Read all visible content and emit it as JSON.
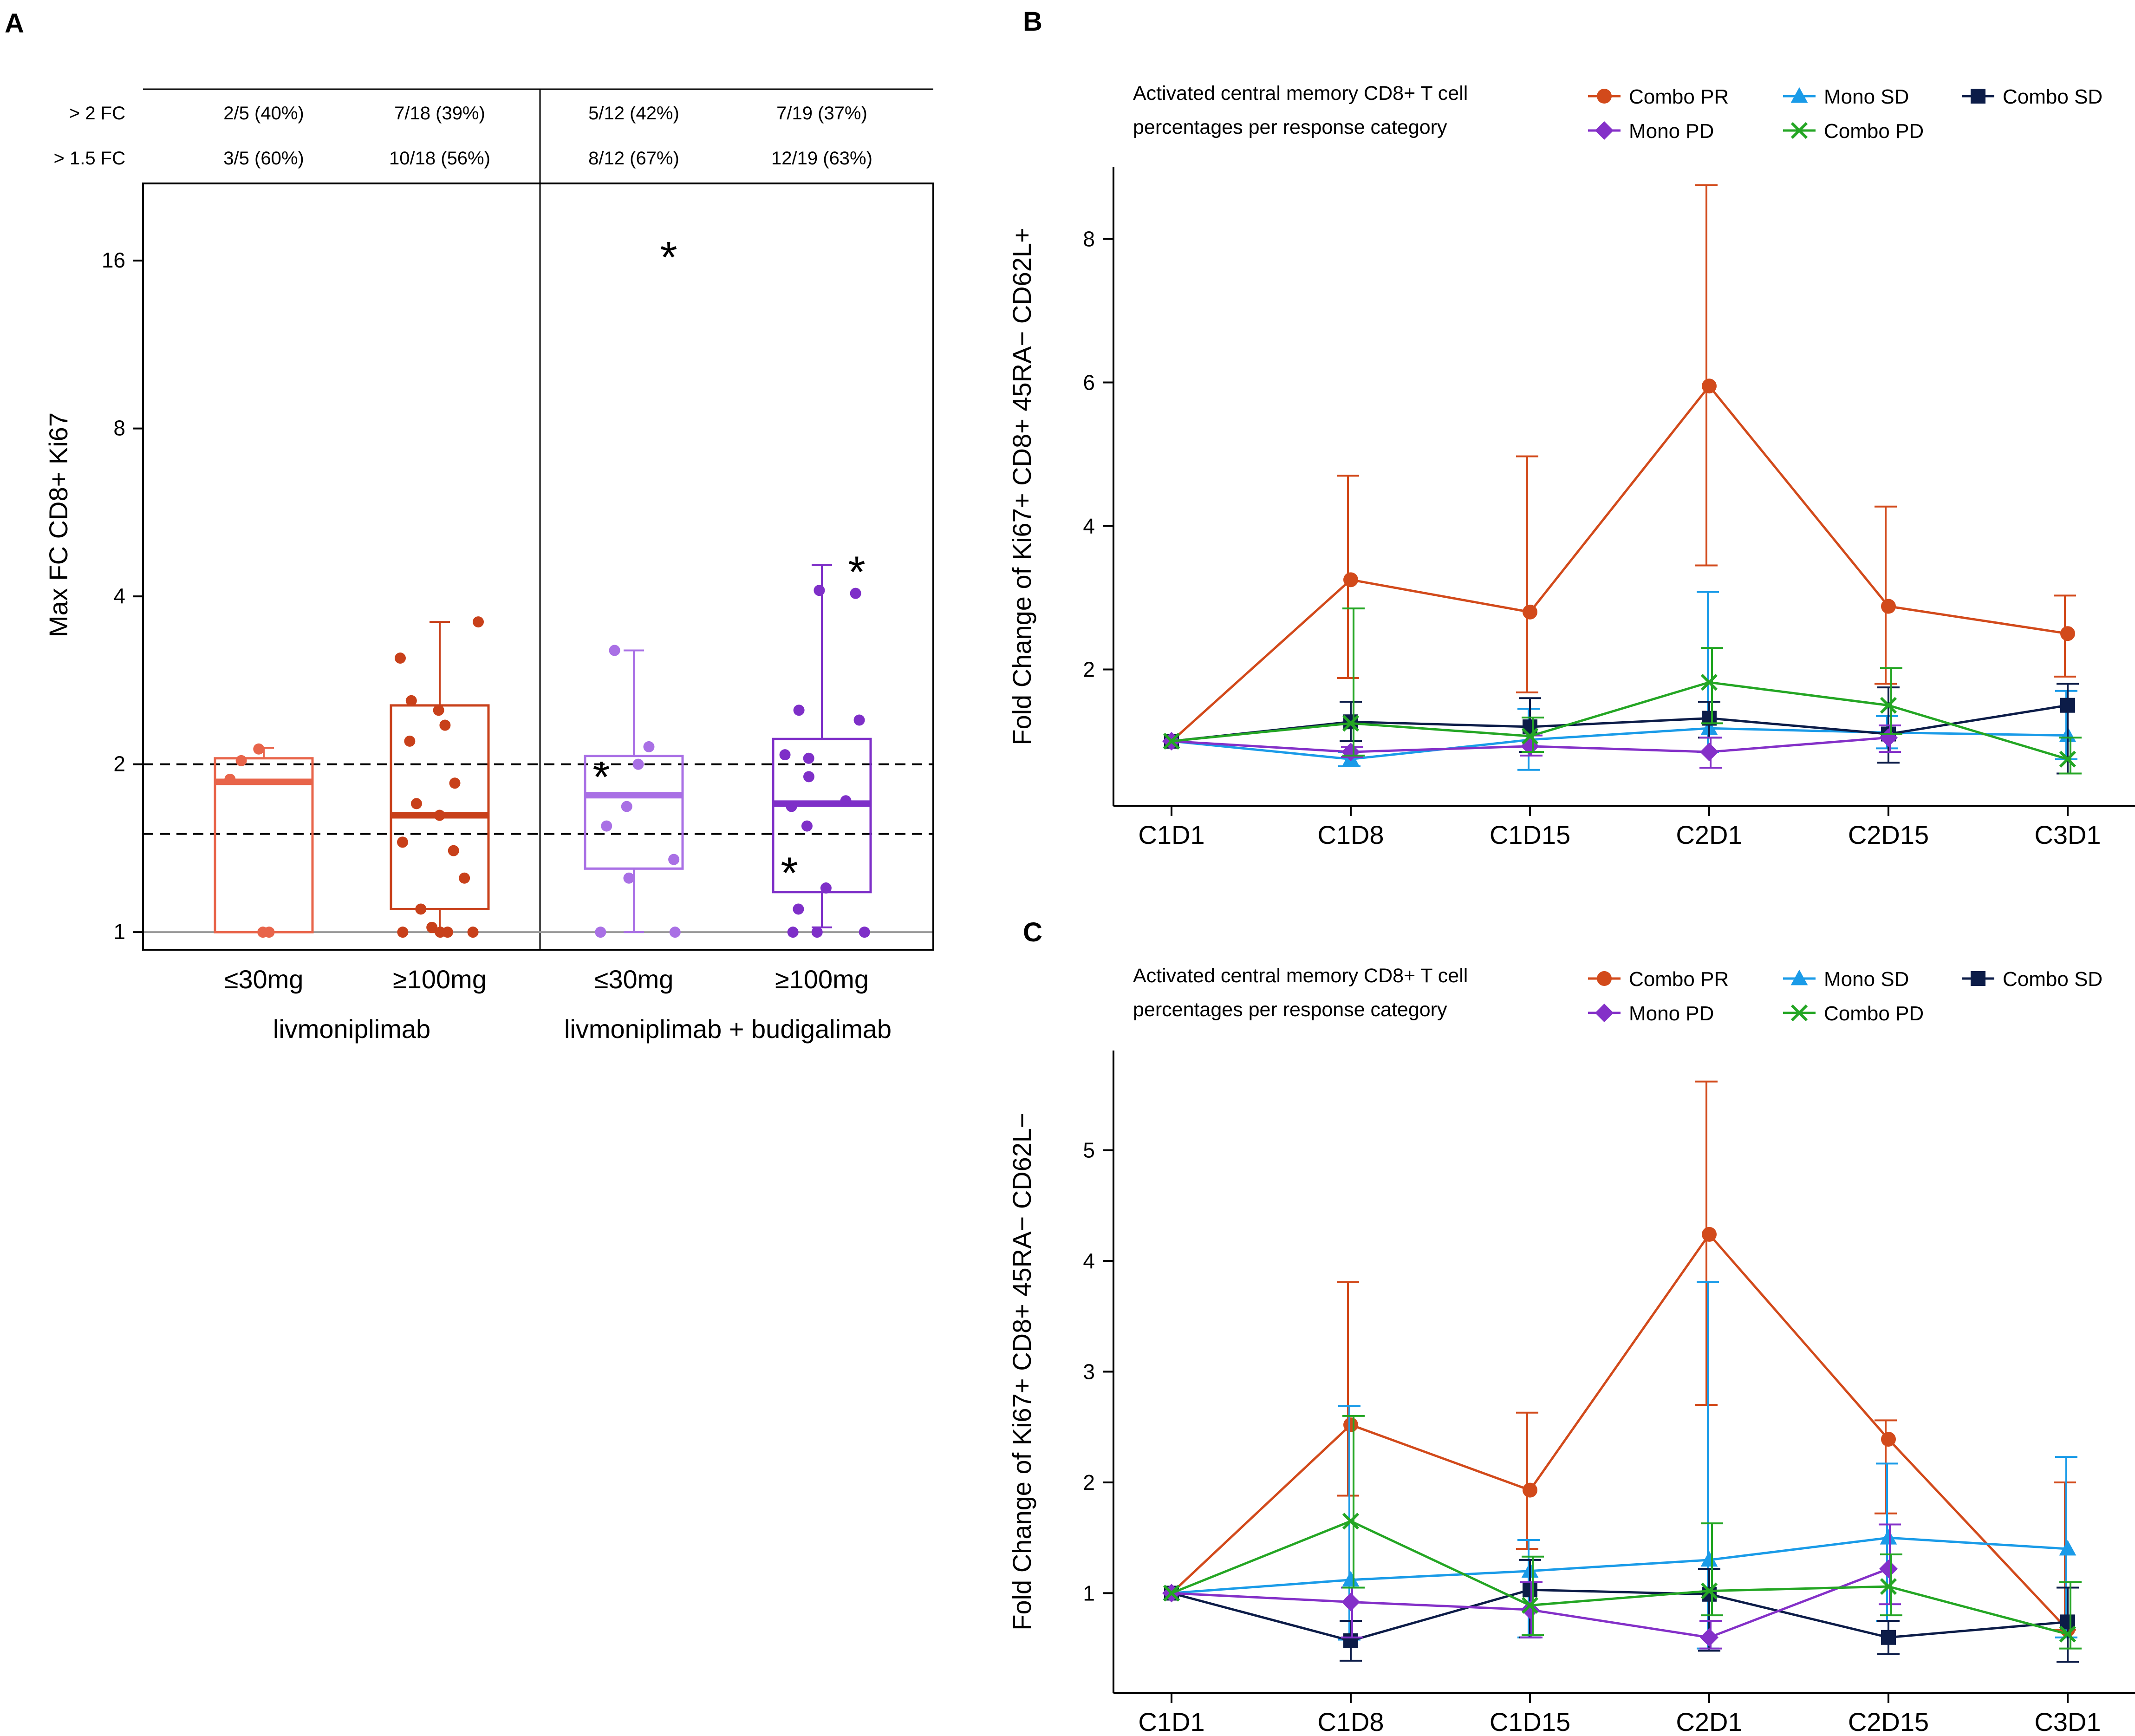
{
  "chart_data": [
    {
      "panel": "A",
      "type": "box",
      "ylabel": "Max FC CD8+ Ki67",
      "yscale": "log2",
      "yticks": [
        1,
        2,
        4,
        8,
        16
      ],
      "ylim": [
        0.93,
        22
      ],
      "reference_lines": [
        {
          "y": 2,
          "style": "dashed"
        },
        {
          "y": 1.5,
          "style": "dashed"
        },
        {
          "y": 1,
          "style": "solid-gray"
        }
      ],
      "header_rows": [
        {
          "label": "> 2 FC",
          "values": [
            "2/5 (40%)",
            "7/18 (39%)",
            "5/12 (42%)",
            "7/19 (37%)"
          ]
        },
        {
          "label": "> 1.5 FC",
          "values": [
            "3/5 (60%)",
            "10/18 (56%)",
            "8/12 (67%)",
            "12/19 (63%)"
          ]
        }
      ],
      "categories": [
        "≤30mg",
        "≥100mg",
        "≤30mg",
        "≥100mg"
      ],
      "groups": [
        {
          "label": "livmoniplimab",
          "categories": [
            0,
            1
          ]
        },
        {
          "label": "livmoniplimab + budigalimab",
          "categories": [
            2,
            3
          ]
        }
      ],
      "boxes": [
        {
          "category": "≤30mg",
          "color": "#E8644A",
          "q1": 1.0,
          "median": 1.86,
          "q3": 2.05,
          "whisker_low": 1.0,
          "whisker_high": 2.14,
          "points": [
            1.0,
            1.0,
            1.88,
            2.03,
            2.13
          ],
          "stars": []
        },
        {
          "category": "≥100mg",
          "color": "#C8401A",
          "q1": 1.1,
          "median": 1.62,
          "q3": 2.55,
          "whisker_low": 1.0,
          "whisker_high": 3.6,
          "points": [
            1.0,
            1.0,
            1.0,
            1.0,
            1.02,
            1.1,
            1.25,
            1.4,
            1.45,
            1.62,
            1.7,
            1.85,
            2.2,
            2.35,
            2.5,
            2.6,
            3.1,
            3.6
          ],
          "stars": []
        },
        {
          "category": "≤30mg",
          "color": "#A970E5",
          "q1": 1.3,
          "median": 1.76,
          "q3": 2.07,
          "whisker_low": 1.0,
          "whisker_high": 3.2,
          "points": [
            1.0,
            1.0,
            1.25,
            1.35,
            1.55,
            1.68,
            2.0,
            2.15,
            3.2
          ],
          "stars": [
            1.93,
            16.5
          ]
        },
        {
          "category": "≥100mg",
          "color": "#7E2FC8",
          "q1": 1.18,
          "median": 1.7,
          "q3": 2.22,
          "whisker_low": 1.02,
          "whisker_high": 4.55,
          "points": [
            1.0,
            1.0,
            1.0,
            1.1,
            1.2,
            1.55,
            1.68,
            1.72,
            1.9,
            2.05,
            2.08,
            2.4,
            2.5,
            4.05,
            4.1
          ],
          "stars": [
            1.3,
            4.5
          ]
        }
      ]
    },
    {
      "panel": "B",
      "type": "line",
      "subtitle": "Activated central memory CD8+ T cell percentages per response category",
      "subtitle_lines": [
        "Activated central memory CD8+ T cell",
        "percentages per response category"
      ],
      "ylabel": "Fold Change of Ki67+ CD8+ 45RA− CD62L+",
      "categories": [
        "C1D1",
        "C1D8",
        "C1D15",
        "C2D1",
        "C2D15",
        "C3D1"
      ],
      "ylim": [
        0.1,
        9.0
      ],
      "yticks": [
        2,
        4,
        6,
        8
      ],
      "series": [
        {
          "name": "Combo PR",
          "color": "#D24A1B",
          "marker": "circle",
          "values": [
            1.0,
            3.25,
            2.8,
            5.95,
            2.88,
            2.5
          ],
          "err_low": [
            1.0,
            1.88,
            1.68,
            3.45,
            1.8,
            1.9
          ],
          "err_high": [
            1.0,
            4.7,
            4.97,
            8.75,
            4.27,
            3.03
          ]
        },
        {
          "name": "Mono SD",
          "color": "#1A9BE8",
          "marker": "triangle",
          "values": [
            1.0,
            0.75,
            1.02,
            1.18,
            1.12,
            1.08
          ],
          "err_low": [
            1.0,
            0.65,
            0.6,
            0.85,
            0.9,
            0.75
          ],
          "err_high": [
            1.0,
            0.85,
            1.45,
            3.08,
            1.35,
            1.7
          ]
        },
        {
          "name": "Combo SD",
          "color": "#0C1C48",
          "marker": "square",
          "values": [
            1.0,
            1.27,
            1.2,
            1.32,
            1.1,
            1.5
          ],
          "err_low": [
            1.0,
            1.0,
            0.85,
            1.05,
            0.7,
            0.55
          ],
          "err_high": [
            1.0,
            1.55,
            1.6,
            1.55,
            1.75,
            1.8
          ]
        },
        {
          "name": "Mono PD",
          "color": "#8430C8",
          "marker": "diamond",
          "values": [
            1.0,
            0.85,
            0.93,
            0.85,
            1.05,
            null
          ],
          "err_low": [
            1.0,
            0.78,
            0.8,
            0.63,
            0.85,
            null
          ],
          "err_high": [
            1.0,
            0.92,
            1.08,
            1.05,
            1.22,
            null
          ]
        },
        {
          "name": "Combo PD",
          "color": "#24A624",
          "marker": "x",
          "values": [
            1.0,
            1.25,
            1.07,
            1.82,
            1.5,
            0.75
          ],
          "err_low": [
            1.0,
            0.8,
            0.85,
            1.25,
            1.1,
            0.55
          ],
          "err_high": [
            1.0,
            2.85,
            1.33,
            2.3,
            2.02,
            1.05
          ]
        }
      ],
      "legend": [
        [
          "Combo PR",
          "Mono SD",
          "Combo SD"
        ],
        [
          "Mono PD",
          "Combo PD"
        ]
      ]
    },
    {
      "panel": "C",
      "type": "line",
      "subtitle": "Activated central memory CD8+ T cell percentages per response category",
      "subtitle_lines": [
        "Activated central memory CD8+ T cell",
        "percentages per response category"
      ],
      "ylabel": "Fold Change of Ki67+ CD8+ 45RA− CD62L−",
      "categories": [
        "C1D1",
        "C1D8",
        "C1D15",
        "C2D1",
        "C2D15",
        "C3D1"
      ],
      "ylim": [
        0.1,
        5.9
      ],
      "yticks": [
        1,
        2,
        3,
        4,
        5
      ],
      "series": [
        {
          "name": "Combo PR",
          "color": "#D24A1B",
          "marker": "circle",
          "values": [
            1.0,
            2.52,
            1.93,
            4.24,
            2.39,
            0.67
          ],
          "err_low": [
            1.0,
            1.88,
            1.4,
            2.7,
            1.72,
            0.67
          ],
          "err_high": [
            1.0,
            3.81,
            2.63,
            5.62,
            2.56,
            2.0
          ]
        },
        {
          "name": "Mono SD",
          "color": "#1A9BE8",
          "marker": "triangle",
          "values": [
            1.0,
            1.12,
            1.2,
            1.3,
            1.5,
            1.4
          ],
          "err_low": [
            1.0,
            0.58,
            0.6,
            0.5,
            0.75,
            0.6
          ],
          "err_high": [
            1.0,
            2.69,
            1.48,
            3.81,
            2.17,
            2.23
          ]
        },
        {
          "name": "Combo SD",
          "color": "#0C1C48",
          "marker": "square",
          "values": [
            1.0,
            0.57,
            1.03,
            0.99,
            0.6,
            0.74
          ],
          "err_low": [
            1.0,
            0.39,
            0.6,
            0.48,
            0.45,
            0.38
          ],
          "err_high": [
            1.0,
            0.75,
            1.3,
            1.22,
            0.75,
            1.05
          ]
        },
        {
          "name": "Mono PD",
          "color": "#8430C8",
          "marker": "diamond",
          "values": [
            1.0,
            0.92,
            0.85,
            0.6,
            1.22,
            null
          ],
          "err_low": [
            1.0,
            0.6,
            0.6,
            0.5,
            0.9,
            null
          ],
          "err_high": [
            1.0,
            1.05,
            1.1,
            0.75,
            1.62,
            null
          ]
        },
        {
          "name": "Combo PD",
          "color": "#24A624",
          "marker": "x",
          "values": [
            1.0,
            1.65,
            0.89,
            1.02,
            1.06,
            0.63
          ],
          "err_low": [
            1.0,
            1.05,
            0.62,
            0.8,
            0.8,
            0.5
          ],
          "err_high": [
            1.0,
            2.6,
            1.33,
            1.63,
            1.35,
            1.1
          ]
        }
      ],
      "legend": [
        [
          "Combo PR",
          "Mono SD",
          "Combo SD"
        ],
        [
          "Mono PD",
          "Combo PD"
        ]
      ]
    }
  ],
  "panel_letters": [
    "A",
    "B",
    "C"
  ]
}
